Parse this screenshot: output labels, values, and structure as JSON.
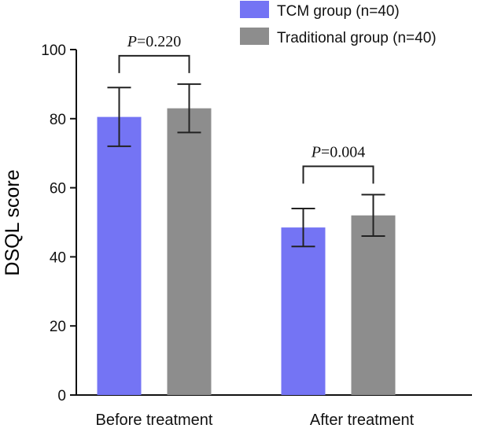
{
  "chart_data": {
    "type": "bar",
    "title": "",
    "xlabel": "",
    "ylabel": "DSQL score",
    "ylim": [
      0,
      100
    ],
    "yticks": [
      0,
      20,
      40,
      60,
      80,
      100
    ],
    "categories": [
      "Before treatment",
      "After treatment"
    ],
    "series": [
      {
        "name": "TCM group (n=40)",
        "color": "#7474f4",
        "values": [
          80.5,
          48.5
        ],
        "errors": [
          8.5,
          5.5
        ]
      },
      {
        "name": "Traditional group (n=40)",
        "color": "#8d8d8d",
        "values": [
          83,
          52
        ],
        "errors": [
          7,
          6
        ]
      }
    ],
    "annotations": [
      {
        "category_index": 0,
        "p_label": "P",
        "p_value": "=0.220"
      },
      {
        "category_index": 1,
        "p_label": "P",
        "p_value": "=0.004"
      }
    ],
    "legend_position": "top-right"
  }
}
